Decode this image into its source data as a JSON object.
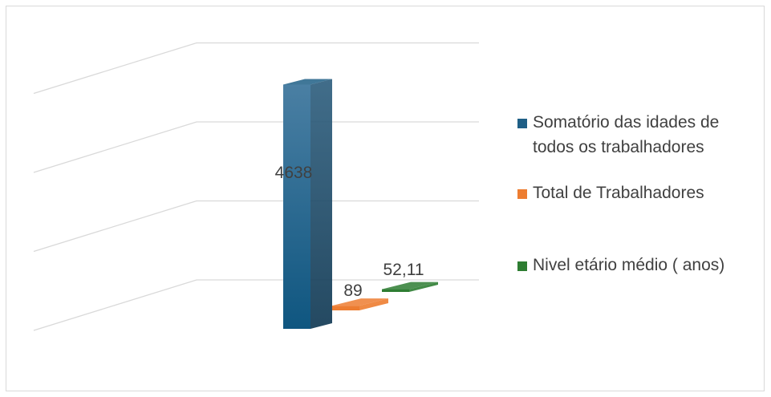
{
  "chart_data": {
    "type": "bar",
    "style": "3d-column",
    "categories": [
      "Somatório das idades de todos os trabalhadores",
      "Total de Trabalhadores",
      "Nivel etário médio ( anos)"
    ],
    "values": [
      4638,
      89,
      52.11
    ],
    "value_labels": [
      "4638",
      "89",
      "52,11"
    ],
    "colors": [
      "#1f5f86",
      "#ed7d31",
      "#2e7d32"
    ],
    "legend": {
      "position": "right",
      "entries": [
        {
          "lines": [
            "Somatório das idades de",
            "todos os trabalhadores"
          ],
          "color": "#1f5f86"
        },
        {
          "lines": [
            "Total de Trabalhadores"
          ],
          "color": "#ed7d31"
        },
        {
          "lines": [
            "Nivel etário médio ( anos)"
          ],
          "color": "#2e7d32"
        }
      ]
    },
    "ylim": [
      0,
      6000
    ],
    "grid": true,
    "title": "",
    "xlabel": "",
    "ylabel": ""
  }
}
